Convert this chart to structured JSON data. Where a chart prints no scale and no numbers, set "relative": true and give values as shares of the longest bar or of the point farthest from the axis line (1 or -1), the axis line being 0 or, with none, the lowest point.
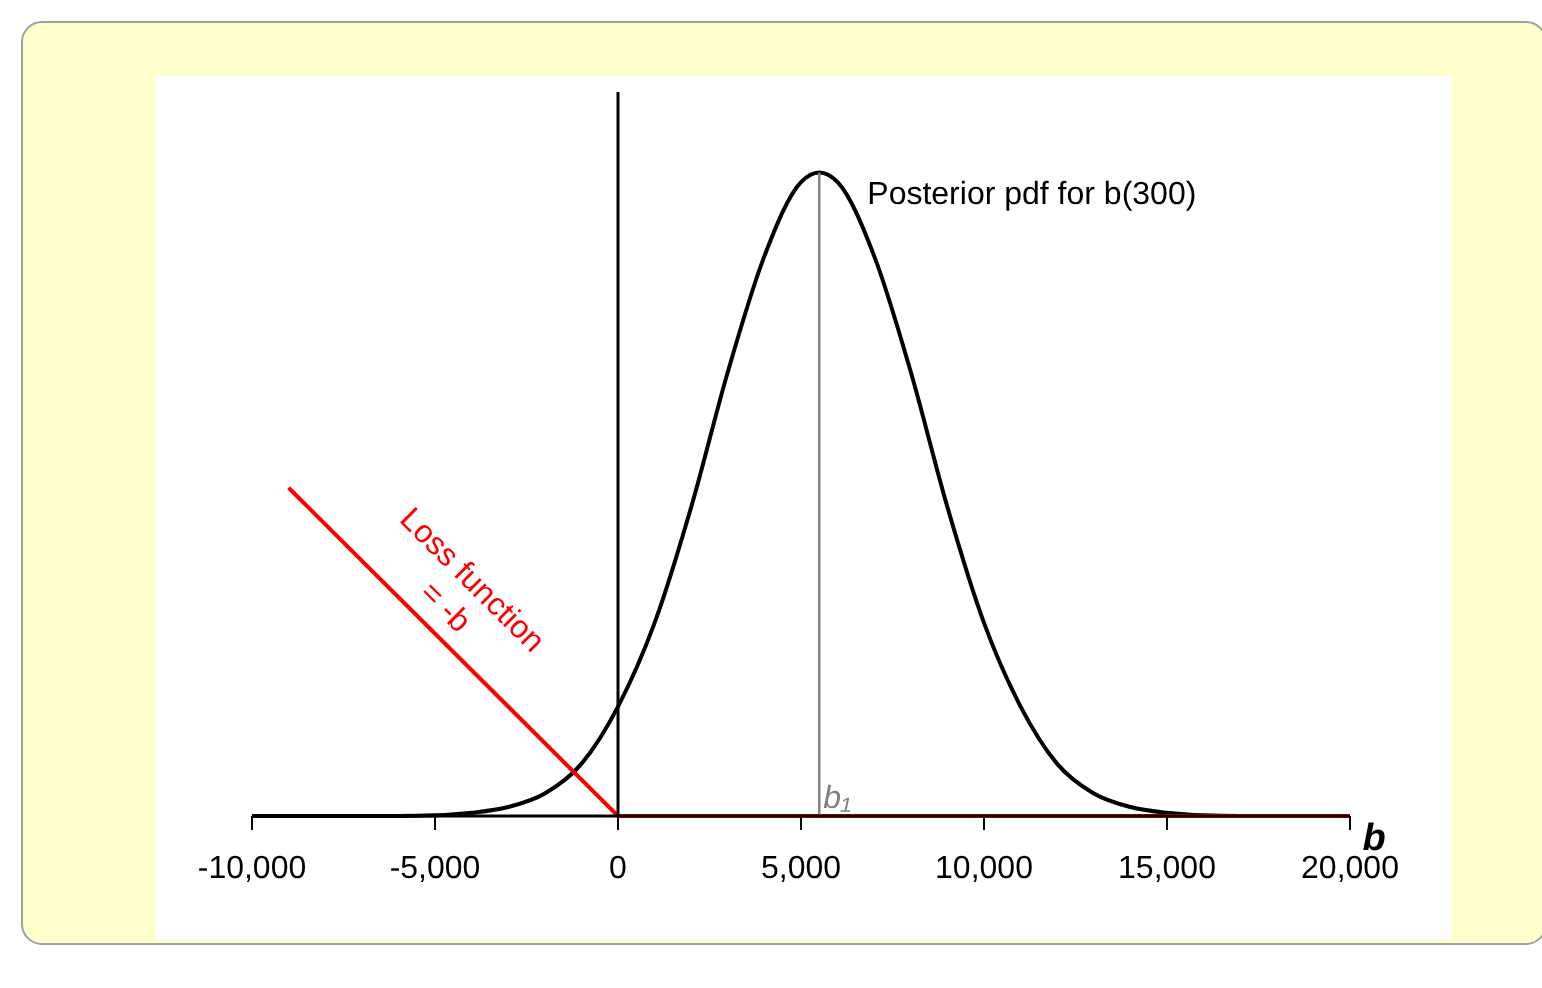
{
  "chart_data": {
    "type": "line",
    "relative": true,
    "xlabel": "b",
    "xlim": [
      -10000,
      20000
    ],
    "xticks": [
      {
        "value": -10000,
        "label": "-10,000"
      },
      {
        "value": -5000,
        "label": "-5,000"
      },
      {
        "value": 0,
        "label": "0"
      },
      {
        "value": 5000,
        "label": "5,000"
      },
      {
        "value": 10000,
        "label": "10,000"
      },
      {
        "value": 15000,
        "label": "15,000"
      },
      {
        "value": 20000,
        "label": "20,000"
      }
    ],
    "x": [
      -10000,
      -8000,
      -6000,
      -5000,
      -4000,
      -3000,
      -2000,
      -1000,
      0,
      1000,
      2000,
      3000,
      4000,
      5000,
      5500,
      6000,
      7000,
      8000,
      9000,
      10000,
      11000,
      12000,
      13000,
      14000,
      15000,
      16000,
      17000,
      18000,
      20000
    ],
    "series": [
      {
        "name": "Posterior pdf for b(300)",
        "color": "#000000",
        "values": [
          0,
          0,
          0,
          0.001,
          0.005,
          0.014,
          0.035,
          0.081,
          0.17,
          0.3,
          0.48,
          0.69,
          0.87,
          0.985,
          1,
          0.985,
          0.87,
          0.69,
          0.48,
          0.3,
          0.17,
          0.081,
          0.035,
          0.014,
          0.005,
          0.001,
          0,
          0,
          0
        ]
      },
      {
        "name": "Loss function = -b",
        "color": "#ff0000",
        "x": [
          -9000,
          0,
          20000
        ],
        "values": [
          0.51,
          0,
          0
        ]
      },
      {
        "name": "b₁",
        "color": "#808080",
        "x": [
          5500,
          5500
        ],
        "values": [
          0,
          1
        ]
      }
    ]
  }
}
